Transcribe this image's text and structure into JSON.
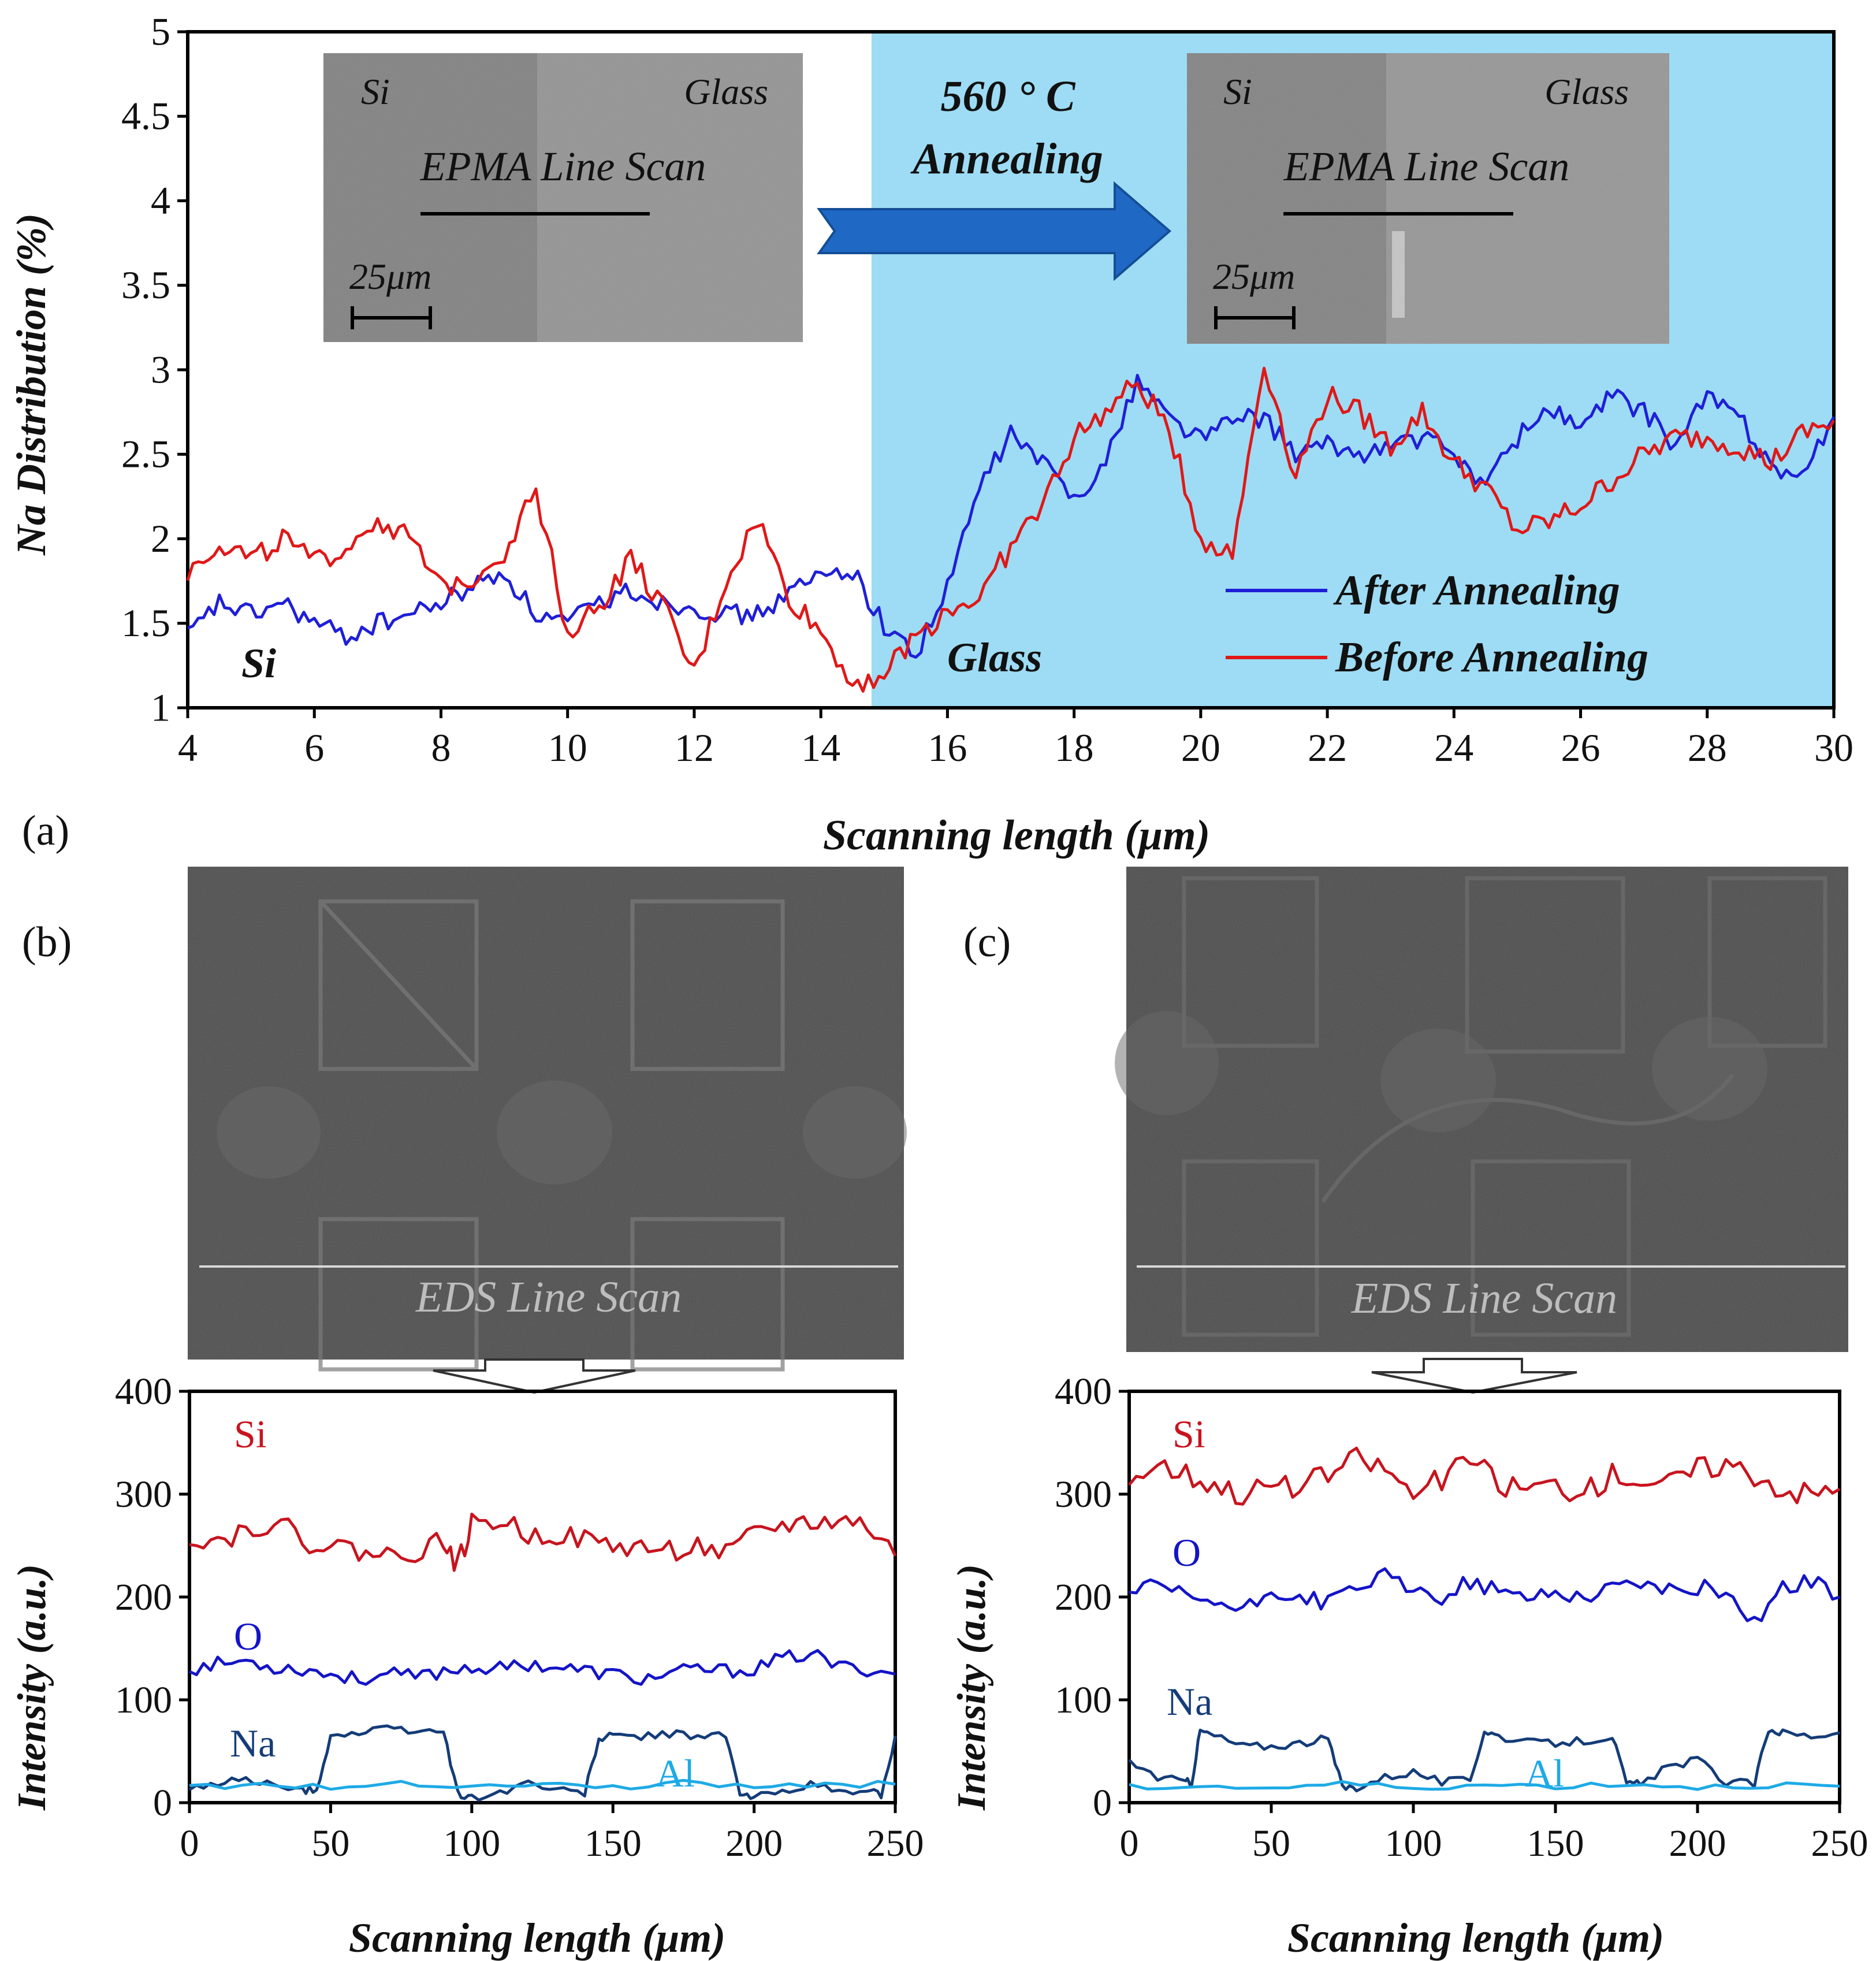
{
  "chart_data": [
    {
      "type": "line",
      "panel_label": "(a)",
      "xlabel": "Scanning length (μm)",
      "ylabel": "Na Distribution  (%)",
      "xlim": [
        4,
        30
      ],
      "ylim": [
        1,
        5
      ],
      "x_ticks": [
        "4",
        "6",
        "8",
        "10",
        "12",
        "14",
        "16",
        "18",
        "20",
        "22",
        "24",
        "26",
        "28",
        "30"
      ],
      "y_ticks": [
        "1",
        "1.5",
        "2",
        "2.5",
        "3",
        "3.5",
        "4",
        "4.5",
        "5"
      ],
      "shaded_region_x": [
        14.8,
        30
      ],
      "shaded_color": "#9ddcf4",
      "region_labels": {
        "left": "Si",
        "right": "Glass"
      },
      "arrow_text": [
        "560 ° C",
        "Annealing"
      ],
      "inset_before": {
        "left": "Si",
        "right": "Glass",
        "center": "EPMA Line Scan",
        "scale": "25μm"
      },
      "inset_after": {
        "left": "Si",
        "right": "Glass",
        "center": "EPMA Line Scan",
        "scale": "25μm"
      },
      "legend": [
        "After Annealing",
        "Before Annealing"
      ],
      "series": [
        {
          "name": "After Annealing",
          "color": "#1f1fd8",
          "x": [
            4,
            4.5,
            5,
            5.5,
            6,
            6.5,
            7,
            7.5,
            8,
            8.5,
            9,
            9.5,
            10,
            10.5,
            11,
            11.5,
            12,
            12.5,
            13,
            13.5,
            14,
            14.5,
            15,
            15.5,
            16,
            16.5,
            17,
            17.5,
            18,
            18.5,
            19,
            19.5,
            20,
            20.5,
            21,
            21.5,
            22,
            22.5,
            23,
            23.5,
            24,
            24.5,
            25,
            25.5,
            26,
            26.5,
            27,
            27.5,
            28,
            28.5,
            29,
            29.5,
            30
          ],
          "y": [
            1.42,
            1.62,
            1.55,
            1.62,
            1.5,
            1.42,
            1.5,
            1.55,
            1.62,
            1.72,
            1.8,
            1.55,
            1.5,
            1.62,
            1.7,
            1.62,
            1.6,
            1.55,
            1.55,
            1.68,
            1.78,
            1.82,
            1.48,
            1.32,
            1.7,
            2.3,
            2.62,
            2.45,
            2.25,
            2.45,
            2.95,
            2.72,
            2.6,
            2.7,
            2.72,
            2.5,
            2.55,
            2.5,
            2.55,
            2.6,
            2.5,
            2.32,
            2.6,
            2.78,
            2.65,
            2.85,
            2.75,
            2.55,
            2.85,
            2.72,
            2.45,
            2.35,
            2.72
          ]
        },
        {
          "name": "Before Annealing",
          "color": "#e01818",
          "x": [
            4,
            4.5,
            5,
            5.5,
            6,
            6.5,
            7,
            7.5,
            8,
            8.5,
            9,
            9.5,
            10,
            10.5,
            11,
            11.5,
            12,
            12.5,
            13,
            13.5,
            14,
            14.5,
            15,
            15.5,
            16,
            16.5,
            17,
            17.5,
            18,
            18.5,
            19,
            19.5,
            20,
            20.5,
            21,
            21.5,
            22,
            22.5,
            23,
            23.5,
            24,
            24.5,
            25,
            25.5,
            26,
            26.5,
            27,
            27.5,
            28,
            28.5,
            29,
            29.5,
            30
          ],
          "y": [
            1.8,
            1.98,
            1.88,
            2.0,
            1.85,
            1.95,
            2.12,
            2.0,
            1.7,
            1.78,
            1.92,
            2.3,
            1.45,
            1.6,
            1.88,
            1.6,
            1.2,
            1.75,
            2.12,
            1.65,
            1.45,
            1.15,
            1.2,
            1.42,
            1.58,
            1.65,
            1.95,
            2.2,
            2.6,
            2.75,
            2.92,
            2.65,
            2.0,
            1.9,
            3.05,
            2.38,
            2.85,
            2.75,
            2.55,
            2.75,
            2.45,
            2.3,
            2.05,
            2.1,
            2.2,
            2.35,
            2.5,
            2.6,
            2.6,
            2.55,
            2.45,
            2.62,
            2.7
          ]
        }
      ]
    },
    {
      "type": "line",
      "panel_label": "(b)",
      "image_caption": "EDS Line Scan",
      "xlabel": "Scanning length (μm)",
      "ylabel": "Intensity (a.u.)",
      "xlim": [
        0,
        250
      ],
      "ylim": [
        0,
        400
      ],
      "x_ticks": [
        "0",
        "50",
        "100",
        "150",
        "200",
        "250"
      ],
      "y_ticks": [
        "0",
        "100",
        "200",
        "300",
        "400"
      ],
      "series": [
        {
          "name": "Si",
          "color": "#c8141e",
          "x": [
            0,
            10,
            20,
            30,
            40,
            50,
            60,
            70,
            80,
            90,
            95,
            100,
            110,
            120,
            130,
            140,
            150,
            160,
            170,
            180,
            190,
            200,
            210,
            220,
            230,
            240,
            250
          ],
          "y": [
            260,
            255,
            265,
            275,
            255,
            250,
            245,
            240,
            245,
            255,
            230,
            270,
            275,
            260,
            262,
            255,
            250,
            248,
            245,
            250,
            240,
            260,
            270,
            272,
            275,
            270,
            240
          ]
        },
        {
          "name": "O",
          "color": "#1414c8",
          "x": [
            0,
            10,
            20,
            30,
            40,
            50,
            60,
            70,
            80,
            90,
            100,
            110,
            120,
            130,
            140,
            150,
            160,
            170,
            180,
            190,
            200,
            210,
            220,
            230,
            240,
            250
          ],
          "y": [
            130,
            135,
            138,
            132,
            130,
            125,
            120,
            125,
            122,
            128,
            132,
            130,
            135,
            132,
            128,
            125,
            120,
            125,
            130,
            128,
            130,
            140,
            145,
            132,
            130,
            125
          ]
        },
        {
          "name": "Na",
          "color": "#143c78",
          "x": [
            0,
            10,
            20,
            30,
            40,
            45,
            50,
            60,
            70,
            80,
            90,
            95,
            100,
            110,
            120,
            130,
            140,
            145,
            150,
            160,
            170,
            180,
            190,
            195,
            200,
            210,
            220,
            230,
            240,
            245,
            250
          ],
          "y": [
            12,
            18,
            25,
            15,
            12,
            12,
            65,
            68,
            72,
            70,
            70,
            8,
            5,
            10,
            20,
            12,
            10,
            62,
            65,
            65,
            66,
            66,
            65,
            8,
            5,
            12,
            18,
            10,
            12,
            8,
            65
          ]
        },
        {
          "name": "Al",
          "color": "#1eaae6",
          "x": [
            0,
            25,
            50,
            75,
            100,
            125,
            150,
            175,
            200,
            225,
            250
          ],
          "y": [
            15,
            18,
            14,
            20,
            16,
            18,
            15,
            19,
            16,
            17,
            18
          ]
        }
      ]
    },
    {
      "type": "line",
      "panel_label": "(c)",
      "image_caption": "EDS Line Scan",
      "xlabel": "Scanning length (μm)",
      "ylabel": "Intensity (a.u.)",
      "xlim": [
        0,
        250
      ],
      "ylim": [
        0,
        400
      ],
      "x_ticks": [
        "0",
        "50",
        "100",
        "150",
        "200",
        "250"
      ],
      "y_ticks": [
        "0",
        "100",
        "200",
        "300",
        "400"
      ],
      "series": [
        {
          "name": "Si",
          "color": "#c8141e",
          "x": [
            0,
            10,
            20,
            30,
            40,
            50,
            60,
            70,
            80,
            90,
            100,
            110,
            120,
            130,
            140,
            150,
            160,
            170,
            180,
            190,
            200,
            210,
            220,
            230,
            240,
            250
          ],
          "y": [
            315,
            330,
            320,
            310,
            300,
            310,
            305,
            320,
            335,
            325,
            300,
            315,
            335,
            310,
            305,
            310,
            300,
            320,
            315,
            310,
            325,
            330,
            320,
            305,
            300,
            305
          ]
        },
        {
          "name": "O",
          "color": "#1414c8",
          "x": [
            0,
            10,
            20,
            30,
            40,
            50,
            60,
            70,
            80,
            90,
            100,
            110,
            120,
            130,
            140,
            150,
            160,
            170,
            180,
            190,
            200,
            210,
            220,
            230,
            240,
            250
          ],
          "y": [
            205,
            210,
            200,
            195,
            185,
            205,
            200,
            195,
            210,
            220,
            205,
            200,
            215,
            205,
            200,
            205,
            200,
            210,
            215,
            205,
            210,
            205,
            175,
            210,
            215,
            200
          ]
        },
        {
          "name": "Na",
          "color": "#143c78",
          "x": [
            0,
            10,
            20,
            22,
            25,
            30,
            40,
            50,
            60,
            70,
            75,
            80,
            90,
            100,
            110,
            120,
            125,
            130,
            140,
            150,
            160,
            170,
            175,
            180,
            190,
            200,
            210,
            220,
            225,
            230,
            240,
            250
          ],
          "y": [
            40,
            25,
            20,
            20,
            70,
            65,
            55,
            55,
            58,
            62,
            15,
            15,
            25,
            30,
            20,
            22,
            70,
            65,
            58,
            58,
            60,
            65,
            18,
            18,
            35,
            42,
            20,
            18,
            72,
            68,
            65,
            68
          ]
        },
        {
          "name": "Al",
          "color": "#1eaae6",
          "x": [
            0,
            25,
            50,
            75,
            100,
            125,
            150,
            175,
            200,
            225,
            250
          ],
          "y": [
            15,
            16,
            14,
            18,
            15,
            17,
            16,
            18,
            15,
            17,
            16
          ]
        }
      ]
    }
  ]
}
